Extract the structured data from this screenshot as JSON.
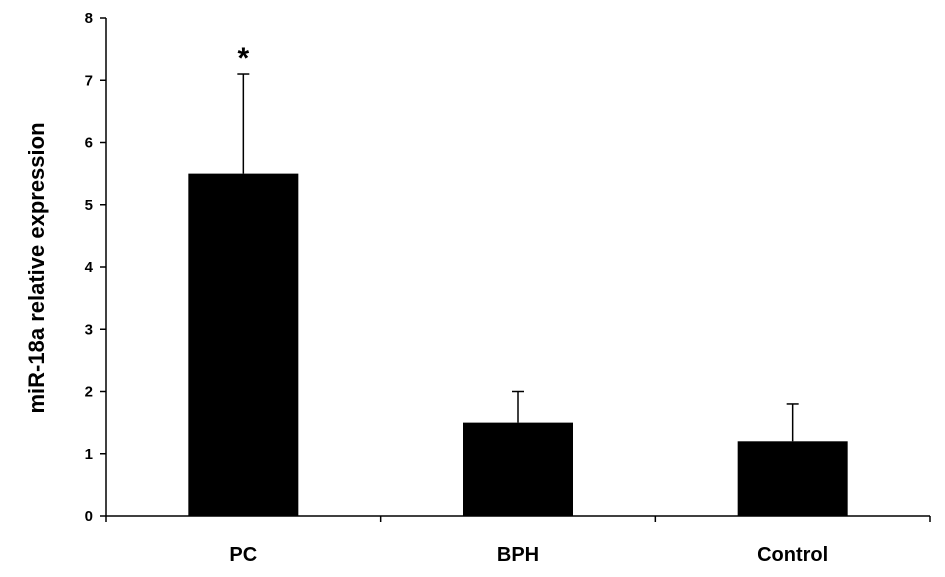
{
  "chart_data": {
    "type": "bar",
    "title": "",
    "xlabel": "",
    "ylabel": "miR-18a relative expression",
    "ylim": [
      0,
      8
    ],
    "yticks": [
      "0",
      "1",
      "2",
      "3",
      "4",
      "5",
      "6",
      "7",
      "8"
    ],
    "categories": [
      "PC",
      "BPH",
      "Control"
    ],
    "values": [
      5.5,
      1.5,
      1.2
    ],
    "error_upper": [
      7.1,
      2.0,
      1.8
    ],
    "annotations": [
      {
        "category": "PC",
        "text": "*"
      }
    ],
    "grid": false,
    "legend": "none",
    "bar_color": "#000000"
  }
}
